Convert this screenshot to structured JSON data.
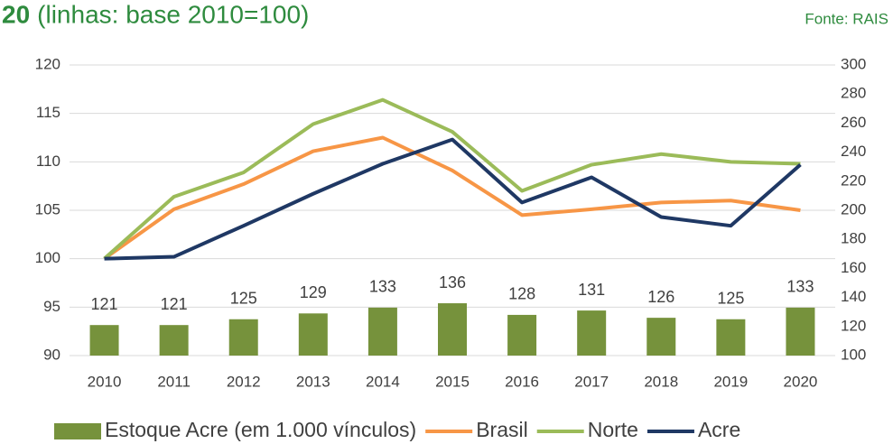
{
  "chart_data": {
    "type": "bar-line",
    "title_bold": "20",
    "title": "(linhas: base 2010=100)",
    "source": "Fonte: RAIS",
    "categories": [
      "2010",
      "2011",
      "2012",
      "2013",
      "2014",
      "2015",
      "2016",
      "2017",
      "2018",
      "2019",
      "2020"
    ],
    "series": [
      {
        "name": "Estoque Acre (em 1.000 vínculos)",
        "type": "bar",
        "axis": "y2",
        "color": "#76923c",
        "values": [
          121,
          121,
          125,
          129,
          133,
          136,
          128,
          131,
          126,
          125,
          133
        ]
      },
      {
        "name": "Brasil",
        "type": "line",
        "color": "#f79646",
        "values": [
          100,
          105.1,
          107.7,
          111.1,
          112.5,
          109.1,
          104.5,
          105.1,
          105.8,
          106.0,
          105.0
        ]
      },
      {
        "name": "Norte",
        "type": "line",
        "color": "#9bbb59",
        "values": [
          100,
          106.4,
          108.9,
          113.9,
          116.4,
          113.1,
          107.0,
          109.7,
          110.8,
          110.0,
          109.8
        ]
      },
      {
        "name": "Acre",
        "type": "line",
        "color": "#1f3864",
        "values": [
          100,
          100.2,
          103.4,
          106.7,
          109.8,
          112.3,
          105.8,
          108.4,
          104.3,
          103.4,
          109.7
        ]
      }
    ],
    "ylim": [
      90,
      120
    ],
    "yticks": [
      90,
      95,
      100,
      105,
      110,
      115,
      120
    ],
    "y2lim": [
      100,
      300
    ],
    "y2ticks": [
      100,
      120,
      140,
      160,
      180,
      200,
      220,
      240,
      260,
      280,
      300
    ],
    "grid": true
  }
}
